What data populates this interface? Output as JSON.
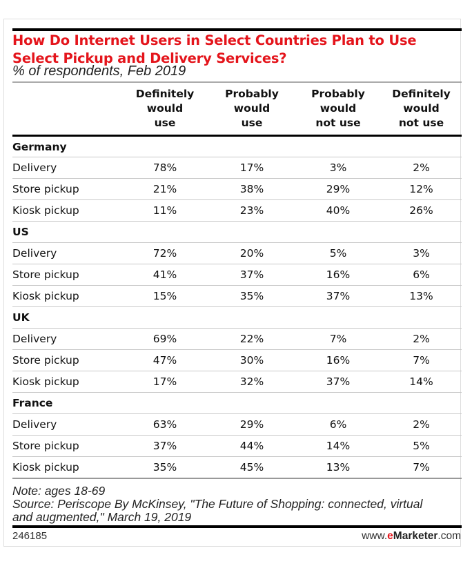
{
  "chart_data": {
    "type": "table",
    "title": "How Do Internet Users in Select Countries Plan to Use Select Pickup and Delivery Services?",
    "subtitle": "% of respondents, Feb 2019",
    "columns": [
      "Definitely would use",
      "Probably would use",
      "Probably would not use",
      "Definitely would not use"
    ],
    "column_lines": [
      [
        "Definitely",
        "would",
        "use"
      ],
      [
        "Probably",
        "would",
        "use"
      ],
      [
        "Probably",
        "would",
        "not use"
      ],
      [
        "Definitely",
        "would",
        "not use"
      ]
    ],
    "groups": [
      {
        "name": "Germany",
        "rows": [
          {
            "label": "Delivery",
            "values": [
              "78%",
              "17%",
              "3%",
              "2%"
            ]
          },
          {
            "label": "Store pickup",
            "values": [
              "21%",
              "38%",
              "29%",
              "12%"
            ]
          },
          {
            "label": "Kiosk pickup",
            "values": [
              "11%",
              "23%",
              "40%",
              "26%"
            ]
          }
        ]
      },
      {
        "name": "US",
        "rows": [
          {
            "label": "Delivery",
            "values": [
              "72%",
              "20%",
              "5%",
              "3%"
            ]
          },
          {
            "label": "Store pickup",
            "values": [
              "41%",
              "37%",
              "16%",
              "6%"
            ]
          },
          {
            "label": "Kiosk pickup",
            "values": [
              "15%",
              "35%",
              "37%",
              "13%"
            ]
          }
        ]
      },
      {
        "name": "UK",
        "rows": [
          {
            "label": "Delivery",
            "values": [
              "69%",
              "22%",
              "7%",
              "2%"
            ]
          },
          {
            "label": "Store pickup",
            "values": [
              "47%",
              "30%",
              "16%",
              "7%"
            ]
          },
          {
            "label": "Kiosk pickup",
            "values": [
              "17%",
              "32%",
              "37%",
              "14%"
            ]
          }
        ]
      },
      {
        "name": "France",
        "rows": [
          {
            "label": "Delivery",
            "values": [
              "63%",
              "29%",
              "6%",
              "2%"
            ]
          },
          {
            "label": "Store pickup",
            "values": [
              "37%",
              "44%",
              "14%",
              "5%"
            ]
          },
          {
            "label": "Kiosk pickup",
            "values": [
              "35%",
              "45%",
              "13%",
              "7%"
            ]
          }
        ]
      }
    ],
    "note": "Note: ages 18-69",
    "source_line1": "Source: Periscope By McKinsey, \"The Future of Shopping: connected, virtual",
    "source_line2": "and augmented,\" March 19, 2019",
    "chart_id": "246185",
    "brand": {
      "prefix": "www.",
      "e": "e",
      "marketer": "Marketer",
      "suffix": ".com"
    },
    "colors": {
      "title": "#e4141b",
      "rules": "#000000",
      "row_lines": "#c8c8c8"
    }
  }
}
